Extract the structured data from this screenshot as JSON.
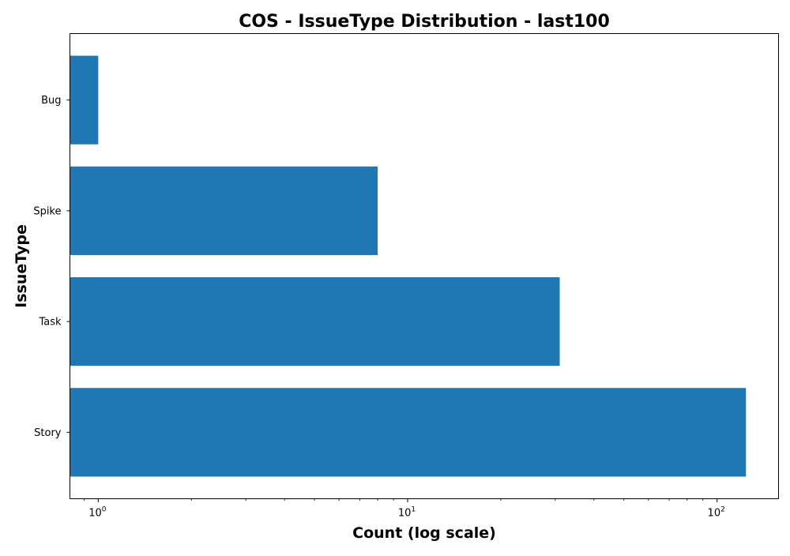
{
  "chart_data": {
    "type": "bar",
    "orientation": "horizontal",
    "title": "COS - IssueType Distribution - last100",
    "xlabel": "Count (log scale)",
    "ylabel": "IssueType",
    "x_scale": "log",
    "xlim": [
      0.81,
      158
    ],
    "x_ticks": [
      {
        "value": 1,
        "base": "10",
        "exp": "0"
      },
      {
        "value": 10,
        "base": "10",
        "exp": "1"
      },
      {
        "value": 100,
        "base": "10",
        "exp": "2"
      }
    ],
    "categories": [
      "Story",
      "Task",
      "Spike",
      "Bug"
    ],
    "values": [
      124,
      31,
      8,
      1
    ],
    "bar_color": "#1f77b4",
    "grid": false,
    "legend": "none"
  }
}
